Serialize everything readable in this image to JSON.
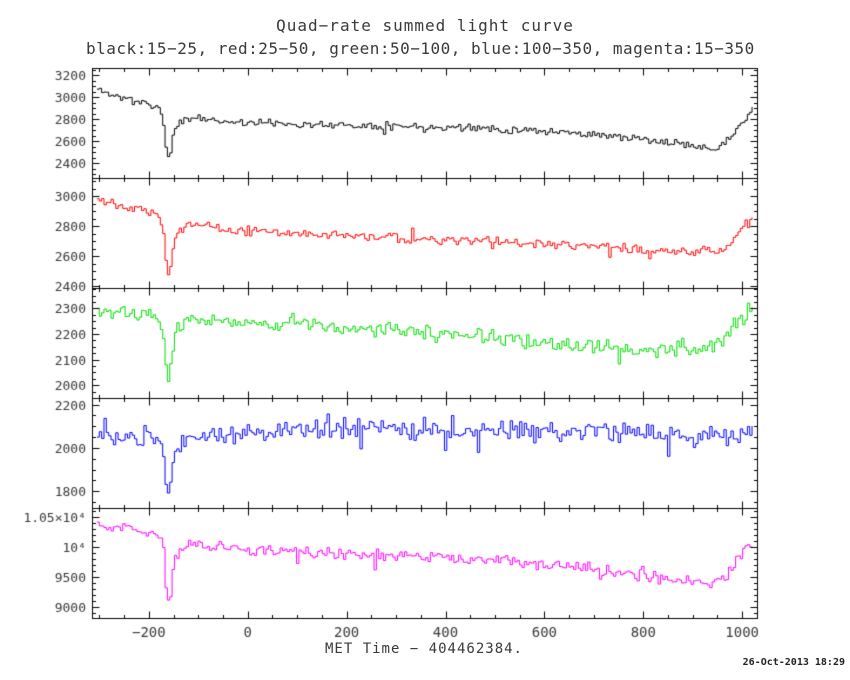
{
  "header": {
    "title": "Quad−rate summed light curve",
    "subtitle": "black:15−25, red:25−50, green:50−100, blue:100−350, magenta:15−350"
  },
  "footer": {
    "timestamp": "26-Oct-2013 18:29"
  },
  "chart_data": {
    "type": "line",
    "style": "step-histogram",
    "title": "Quad−rate summed light curve",
    "subtitle": "black:15−25, red:25−50, green:50−100, blue:100−350, magenta:15−350",
    "xlabel": "MET Time − 404462384.",
    "grid": false,
    "x_range": [
      -315,
      1030
    ],
    "x_major_ticks": [
      -200,
      0,
      200,
      400,
      600,
      800,
      1000
    ],
    "x_minor_step": 50,
    "x_start": -305,
    "x_end": 1020,
    "n_points": 280,
    "legend": [
      {
        "series": "black",
        "band": "15−25"
      },
      {
        "series": "red",
        "band": "25−50"
      },
      {
        "series": "green",
        "band": "50−100"
      },
      {
        "series": "blue",
        "band": "100−350"
      },
      {
        "series": "magenta",
        "band": "15−350"
      }
    ],
    "panels": [
      {
        "series": "black",
        "band": "15−25",
        "color": "#000000",
        "y_range": [
          2264,
          3264
        ],
        "y_minor_step": 50,
        "noise_sigma": 40,
        "seed": 11,
        "y_ticks": [
          {
            "v": 2400,
            "label": "2400"
          },
          {
            "v": 2600,
            "label": "2600"
          },
          {
            "v": 2800,
            "label": "2800"
          },
          {
            "v": 3000,
            "label": "3000"
          },
          {
            "v": 3200,
            "label": "3200"
          }
        ],
        "trend": [
          [
            -305,
            3070
          ],
          [
            -260,
            3000
          ],
          [
            -230,
            2960
          ],
          [
            -200,
            2930
          ],
          [
            -180,
            2900
          ],
          [
            -172,
            2760
          ],
          [
            -166,
            2500
          ],
          [
            -160,
            2440
          ],
          [
            -154,
            2620
          ],
          [
            -146,
            2740
          ],
          [
            -130,
            2800
          ],
          [
            -100,
            2810
          ],
          [
            -60,
            2780
          ],
          [
            0,
            2770
          ],
          [
            150,
            2750
          ],
          [
            300,
            2735
          ],
          [
            450,
            2720
          ],
          [
            600,
            2690
          ],
          [
            700,
            2660
          ],
          [
            800,
            2610
          ],
          [
            860,
            2580
          ],
          [
            920,
            2550
          ],
          [
            955,
            2545
          ],
          [
            975,
            2640
          ],
          [
            995,
            2760
          ],
          [
            1010,
            2840
          ],
          [
            1020,
            2880
          ]
        ]
      },
      {
        "series": "red",
        "band": "25−50",
        "color": "#ff0000",
        "y_range": [
          2390,
          3123
        ],
        "y_minor_step": 50,
        "noise_sigma": 40,
        "seed": 22,
        "y_ticks": [
          {
            "v": 2400,
            "label": "2400"
          },
          {
            "v": 2600,
            "label": "2600"
          },
          {
            "v": 2800,
            "label": "2800"
          },
          {
            "v": 3000,
            "label": "3000"
          }
        ],
        "trend": [
          [
            -305,
            2990
          ],
          [
            -260,
            2950
          ],
          [
            -230,
            2930
          ],
          [
            -200,
            2905
          ],
          [
            -180,
            2880
          ],
          [
            -172,
            2740
          ],
          [
            -166,
            2520
          ],
          [
            -160,
            2450
          ],
          [
            -154,
            2640
          ],
          [
            -146,
            2760
          ],
          [
            -130,
            2800
          ],
          [
            -100,
            2810
          ],
          [
            -60,
            2790
          ],
          [
            0,
            2770
          ],
          [
            150,
            2745
          ],
          [
            300,
            2720
          ],
          [
            450,
            2705
          ],
          [
            600,
            2680
          ],
          [
            700,
            2665
          ],
          [
            800,
            2645
          ],
          [
            860,
            2635
          ],
          [
            920,
            2620
          ],
          [
            955,
            2625
          ],
          [
            975,
            2690
          ],
          [
            995,
            2780
          ],
          [
            1010,
            2840
          ],
          [
            1020,
            2870
          ]
        ]
      },
      {
        "series": "green",
        "band": "50−100",
        "color": "#00dd00",
        "y_range": [
          1950,
          2380
        ],
        "y_minor_step": 25,
        "noise_sigma": 38,
        "seed": 33,
        "y_ticks": [
          {
            "v": 2000,
            "label": "2000"
          },
          {
            "v": 2100,
            "label": "2100"
          },
          {
            "v": 2200,
            "label": "2200"
          },
          {
            "v": 2300,
            "label": "2300"
          }
        ],
        "trend": [
          [
            -305,
            2290
          ],
          [
            -250,
            2280
          ],
          [
            -200,
            2270
          ],
          [
            -175,
            2230
          ],
          [
            -166,
            2060
          ],
          [
            -160,
            2010
          ],
          [
            -154,
            2140
          ],
          [
            -146,
            2230
          ],
          [
            -120,
            2265
          ],
          [
            -60,
            2255
          ],
          [
            0,
            2245
          ],
          [
            150,
            2230
          ],
          [
            300,
            2212
          ],
          [
            450,
            2195
          ],
          [
            600,
            2170
          ],
          [
            700,
            2150
          ],
          [
            800,
            2135
          ],
          [
            870,
            2130
          ],
          [
            920,
            2145
          ],
          [
            960,
            2180
          ],
          [
            990,
            2250
          ],
          [
            1010,
            2290
          ],
          [
            1020,
            2305
          ]
        ]
      },
      {
        "series": "blue",
        "band": "100−350",
        "color": "#0000ff",
        "y_range": [
          1723,
          2230
        ],
        "y_minor_step": 50,
        "noise_sigma": 60,
        "seed": 44,
        "y_ticks": [
          {
            "v": 1800,
            "label": "1800"
          },
          {
            "v": 2000,
            "label": "2000"
          },
          {
            "v": 2200,
            "label": "2200"
          }
        ],
        "trend": [
          [
            -305,
            2050
          ],
          [
            -250,
            2045
          ],
          [
            -200,
            2050
          ],
          [
            -175,
            2020
          ],
          [
            -166,
            1840
          ],
          [
            -160,
            1760
          ],
          [
            -154,
            1930
          ],
          [
            -146,
            2010
          ],
          [
            -100,
            2050
          ],
          [
            0,
            2070
          ],
          [
            150,
            2085
          ],
          [
            300,
            2090
          ],
          [
            450,
            2080
          ],
          [
            600,
            2075
          ],
          [
            700,
            2080
          ],
          [
            800,
            2065
          ],
          [
            900,
            2050
          ],
          [
            960,
            2045
          ],
          [
            1000,
            2060
          ],
          [
            1020,
            2075
          ]
        ]
      },
      {
        "series": "magenta",
        "band": "15−350",
        "color": "#ff00ff",
        "y_range": [
          8820,
          10650
        ],
        "y_minor_step": 100,
        "noise_sigma": 120,
        "seed": 55,
        "y_ticks": [
          {
            "v": 9000,
            "label": "9000"
          },
          {
            "v": 9500,
            "label": "9500"
          },
          {
            "v": 10000,
            "label": "10⁴"
          },
          {
            "v": 10500,
            "label": "1.05×10⁴"
          }
        ],
        "trend": [
          [
            -305,
            10380
          ],
          [
            -260,
            10330
          ],
          [
            -230,
            10290
          ],
          [
            -200,
            10240
          ],
          [
            -180,
            10180
          ],
          [
            -172,
            9900
          ],
          [
            -166,
            9200
          ],
          [
            -160,
            8960
          ],
          [
            -154,
            9550
          ],
          [
            -146,
            9900
          ],
          [
            -130,
            10020
          ],
          [
            -100,
            10040
          ],
          [
            -60,
            10000
          ],
          [
            0,
            9960
          ],
          [
            150,
            9910
          ],
          [
            300,
            9860
          ],
          [
            450,
            9800
          ],
          [
            600,
            9720
          ],
          [
            700,
            9630
          ],
          [
            800,
            9520
          ],
          [
            860,
            9470
          ],
          [
            920,
            9420
          ],
          [
            955,
            9430
          ],
          [
            975,
            9600
          ],
          [
            995,
            9850
          ],
          [
            1010,
            10020
          ],
          [
            1020,
            10100
          ]
        ]
      }
    ]
  }
}
